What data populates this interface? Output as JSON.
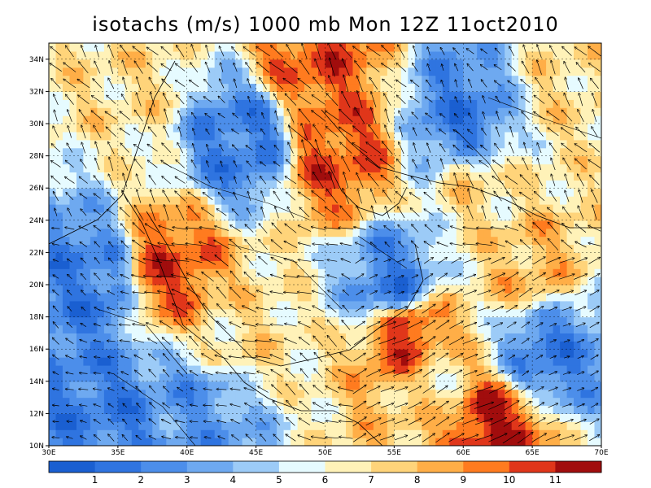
{
  "map": {
    "title": "isotachs (m/s) 1000 mb Mon 12Z 11oct2010",
    "lat_ticks": [
      "10N",
      "12N",
      "14N",
      "16N",
      "18N",
      "20N",
      "22N",
      "24N",
      "26N",
      "28N",
      "30N",
      "32N",
      "34N"
    ],
    "lon_ticks": [
      "30E",
      "35E",
      "40E",
      "45E",
      "50E",
      "55E",
      "60E",
      "65E",
      "70E"
    ],
    "lon_range": [
      30,
      70
    ],
    "lat_range": [
      10,
      35
    ]
  },
  "colorbar": {
    "labels": [
      "1",
      "2",
      "3",
      "4",
      "5",
      "6",
      "7",
      "8",
      "9",
      "10",
      "11"
    ],
    "colors": [
      "#1a5fd1",
      "#2f74e0",
      "#4c8eea",
      "#6ea9f0",
      "#9ccbf7",
      "#e6fbff",
      "#fff2b8",
      "#ffd47a",
      "#ffae47",
      "#ff7b1f",
      "#e0361a",
      "#a10d0d"
    ]
  },
  "wind_regions": [
    {
      "lon": 51,
      "lat": 28,
      "speed": 10
    },
    {
      "lon": 56,
      "lat": 17,
      "speed": 10.5
    },
    {
      "lon": 62,
      "lat": 11,
      "speed": 11
    },
    {
      "lon": 39,
      "lat": 21,
      "speed": 10
    },
    {
      "lon": 49,
      "lat": 34,
      "speed": 10
    },
    {
      "lon": 65,
      "lat": 21,
      "speed": 8
    },
    {
      "lon": 58,
      "lat": 14,
      "speed": 7
    },
    {
      "lon": 36,
      "lat": 33,
      "speed": 7
    },
    {
      "lon": 68,
      "lat": 32,
      "speed": 7
    },
    {
      "lon": 61,
      "lat": 26,
      "speed": 7
    },
    {
      "lon": 44,
      "lat": 17,
      "speed": 7
    },
    {
      "lon": 44,
      "lat": 29,
      "speed": 2
    },
    {
      "lon": 55,
      "lat": 20,
      "speed": 2
    },
    {
      "lon": 34,
      "lat": 12,
      "speed": 2
    },
    {
      "lon": 41,
      "lat": 12,
      "speed": 3
    },
    {
      "lon": 60,
      "lat": 30,
      "speed": 2
    },
    {
      "lon": 66,
      "lat": 16,
      "speed": 2
    },
    {
      "lon": 33,
      "lat": 20,
      "speed": 2
    }
  ]
}
